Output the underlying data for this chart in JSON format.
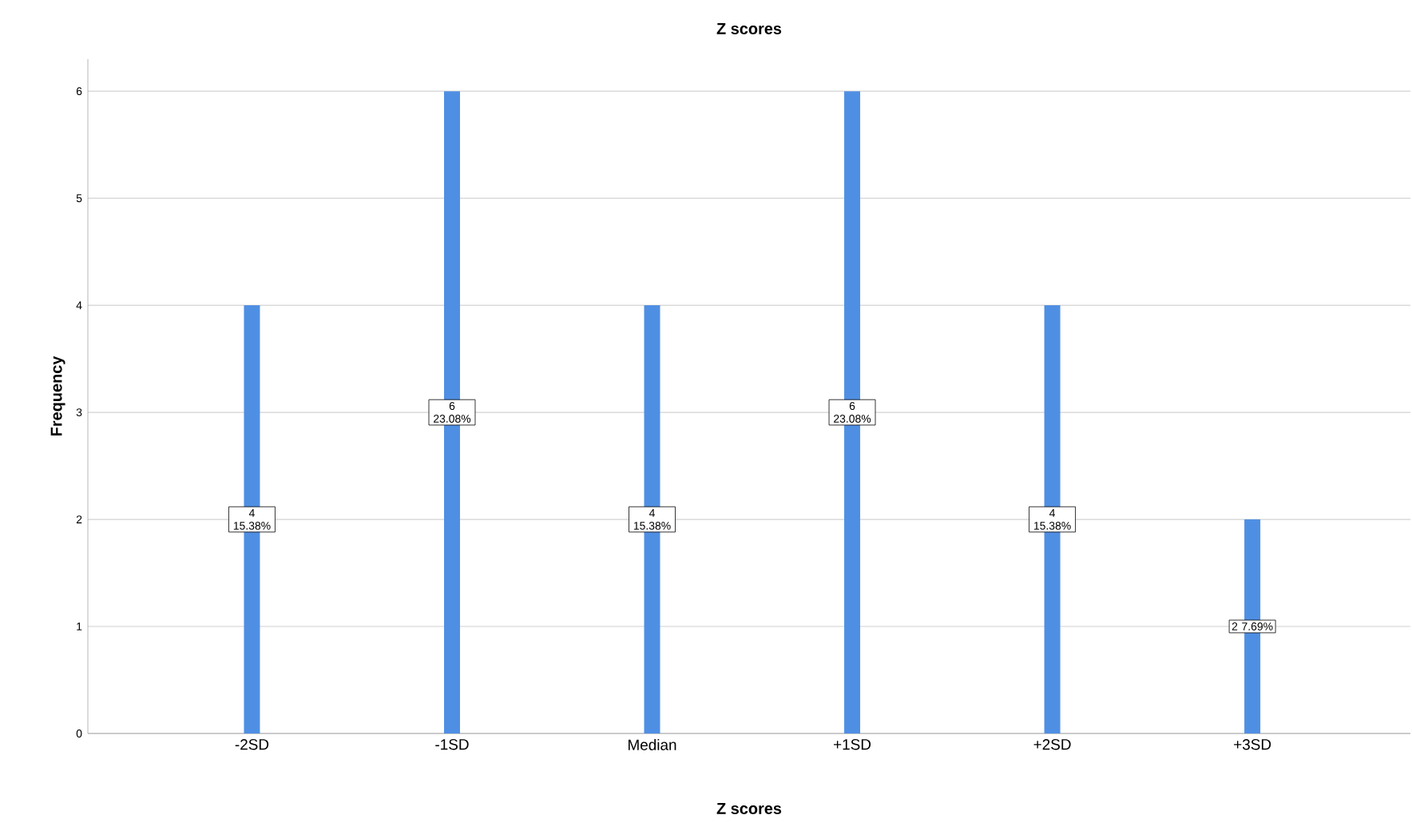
{
  "chart_data": {
    "type": "bar",
    "title": "Z scores",
    "xlabel": "Z scores",
    "ylabel": "Frequency",
    "categories": [
      "-2SD",
      "-1SD",
      "Median",
      "+1SD",
      "+2SD",
      "+3SD"
    ],
    "values": [
      4,
      6,
      4,
      6,
      4,
      2
    ],
    "color": "#4f8fe3",
    "value_labels": [
      "4 15.38%",
      "6 23.08%",
      "4 15.38%",
      "6 23.08%",
      "4 15.38%",
      "2 7.69%"
    ],
    "ylim": [
      0,
      6.3
    ],
    "yticks": [
      0,
      1,
      2,
      3,
      4,
      5,
      6
    ],
    "grid": "y"
  }
}
